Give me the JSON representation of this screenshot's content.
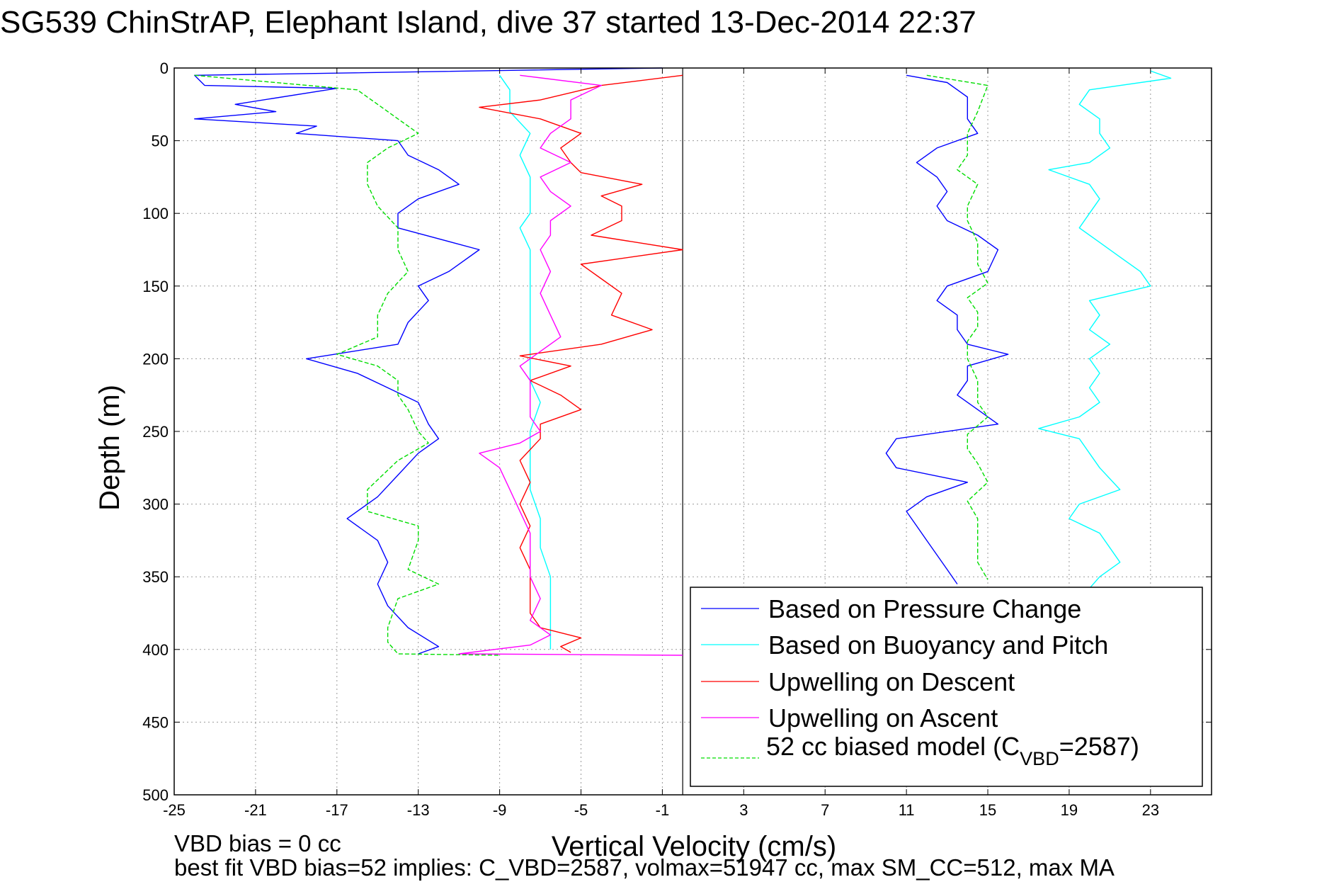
{
  "chart_data": {
    "type": "line",
    "title": "SG539 ChinStrAP, Elephant Island, dive 37 started 13-Dec-2014 22:37",
    "xlabel": "Vertical Velocity (cm/s)",
    "ylabel": "Depth (m)",
    "xlim": [
      -25,
      26
    ],
    "ylim": [
      0,
      500
    ],
    "y_reversed": true,
    "xticks": [
      "-25",
      "-21",
      "-17",
      "-13",
      "-9",
      "-5",
      "-1",
      "3",
      "7",
      "11",
      "15",
      "19",
      "23"
    ],
    "yticks": [
      "0",
      "50",
      "100",
      "150",
      "200",
      "250",
      "300",
      "350",
      "400",
      "450",
      "500"
    ],
    "grid": true,
    "zero_line_x": 0,
    "legend_position": "bottom-right",
    "legend": {
      "pressure": "Based on Pressure Change",
      "buoyancy": "Based on Buoyancy and Pitch",
      "descent": "Upwelling on Descent",
      "ascent": "Upwelling on Ascent",
      "model_prefix": "52 cc biased model (C",
      "model_sub": "VBD",
      "model_suffix": "=2587)"
    },
    "series": [
      {
        "key": "pressure-descent",
        "color": "#0000ff",
        "dashed": false,
        "points": [
          [
            -1,
            0
          ],
          [
            -24,
            5
          ],
          [
            -23.5,
            12
          ],
          [
            -17,
            14
          ],
          [
            -22,
            25
          ],
          [
            -20,
            30
          ],
          [
            -24,
            35
          ],
          [
            -18,
            40
          ],
          [
            -19,
            45
          ],
          [
            -14,
            50
          ],
          [
            -13.5,
            60
          ],
          [
            -12,
            70
          ],
          [
            -11,
            80
          ],
          [
            -13,
            90
          ],
          [
            -14,
            100
          ],
          [
            -14,
            110
          ],
          [
            -10,
            125
          ],
          [
            -11.5,
            140
          ],
          [
            -13,
            150
          ],
          [
            -12.5,
            160
          ],
          [
            -13.5,
            175
          ],
          [
            -14,
            190
          ],
          [
            -18.5,
            200
          ],
          [
            -16,
            210
          ],
          [
            -14.5,
            220
          ],
          [
            -13,
            230
          ],
          [
            -12.5,
            245
          ],
          [
            -12,
            255
          ],
          [
            -13,
            265
          ],
          [
            -14,
            280
          ],
          [
            -15,
            295
          ],
          [
            -16.5,
            310
          ],
          [
            -15,
            325
          ],
          [
            -14.5,
            340
          ],
          [
            -15,
            355
          ],
          [
            -14.5,
            370
          ],
          [
            -13.5,
            385
          ],
          [
            -12,
            398
          ],
          [
            -13,
            403
          ]
        ]
      },
      {
        "key": "pressure-ascent",
        "color": "#0000ff",
        "dashed": false,
        "points": [
          [
            11,
            5
          ],
          [
            13,
            10
          ],
          [
            14,
            20
          ],
          [
            14,
            35
          ],
          [
            14.5,
            45
          ],
          [
            12.5,
            55
          ],
          [
            11.5,
            65
          ],
          [
            12.5,
            75
          ],
          [
            13,
            85
          ],
          [
            12.5,
            95
          ],
          [
            13,
            105
          ],
          [
            14.5,
            115
          ],
          [
            15.5,
            125
          ],
          [
            15,
            140
          ],
          [
            13,
            150
          ],
          [
            12.5,
            160
          ],
          [
            13.5,
            170
          ],
          [
            13.5,
            180
          ],
          [
            14,
            190
          ],
          [
            16,
            197
          ],
          [
            14,
            205
          ],
          [
            14,
            215
          ],
          [
            13.5,
            225
          ],
          [
            14.5,
            235
          ],
          [
            15.5,
            245
          ],
          [
            10.5,
            255
          ],
          [
            10,
            265
          ],
          [
            10.5,
            275
          ],
          [
            14,
            285
          ],
          [
            12,
            295
          ],
          [
            11,
            305
          ],
          [
            11.5,
            315
          ],
          [
            12,
            325
          ],
          [
            12.5,
            335
          ],
          [
            13,
            345
          ],
          [
            13.5,
            355
          ]
        ]
      },
      {
        "key": "buoyancy-descent",
        "color": "#00ffff",
        "dashed": false,
        "points": [
          [
            -9,
            5
          ],
          [
            -8.5,
            15
          ],
          [
            -8.5,
            30
          ],
          [
            -7.5,
            45
          ],
          [
            -8,
            60
          ],
          [
            -7.5,
            75
          ],
          [
            -7.5,
            90
          ],
          [
            -7.5,
            100
          ],
          [
            -8,
            110
          ],
          [
            -7.5,
            125
          ],
          [
            -7.5,
            140
          ],
          [
            -7.5,
            155
          ],
          [
            -7.5,
            170
          ],
          [
            -7.5,
            185
          ],
          [
            -7.5,
            200
          ],
          [
            -7.5,
            215
          ],
          [
            -7,
            230
          ],
          [
            -7.5,
            250
          ],
          [
            -7.5,
            270
          ],
          [
            -7.5,
            290
          ],
          [
            -7,
            310
          ],
          [
            -7,
            330
          ],
          [
            -6.5,
            350
          ],
          [
            -6.5,
            370
          ],
          [
            -6.5,
            385
          ],
          [
            -6.5,
            400
          ]
        ]
      },
      {
        "key": "buoyancy-ascent",
        "color": "#00ffff",
        "dashed": false,
        "points": [
          [
            23,
            2
          ],
          [
            24,
            7
          ],
          [
            20,
            15
          ],
          [
            19.5,
            25
          ],
          [
            20.5,
            35
          ],
          [
            20.5,
            45
          ],
          [
            21,
            55
          ],
          [
            20,
            65
          ],
          [
            18,
            70
          ],
          [
            20,
            80
          ],
          [
            20.5,
            90
          ],
          [
            20,
            100
          ],
          [
            19.5,
            110
          ],
          [
            20.5,
            120
          ],
          [
            21.5,
            130
          ],
          [
            22.5,
            140
          ],
          [
            23,
            150
          ],
          [
            20,
            160
          ],
          [
            20.5,
            170
          ],
          [
            20,
            180
          ],
          [
            21,
            190
          ],
          [
            20,
            200
          ],
          [
            20.5,
            210
          ],
          [
            20,
            220
          ],
          [
            20.5,
            230
          ],
          [
            19.5,
            240
          ],
          [
            17.5,
            248
          ],
          [
            19.5,
            255
          ],
          [
            20,
            265
          ],
          [
            20.5,
            275
          ],
          [
            21.5,
            290
          ],
          [
            19.5,
            300
          ],
          [
            19,
            310
          ],
          [
            20.5,
            320
          ],
          [
            21,
            330
          ],
          [
            21.5,
            340
          ],
          [
            20.5,
            350
          ],
          [
            20,
            358
          ]
        ]
      },
      {
        "key": "upwelling-descent",
        "color": "#ff0000",
        "dashed": false,
        "points": [
          [
            0,
            5
          ],
          [
            -4,
            12
          ],
          [
            -7,
            22
          ],
          [
            -10,
            27
          ],
          [
            -7,
            35
          ],
          [
            -5,
            45
          ],
          [
            -6,
            55
          ],
          [
            -5.5,
            65
          ],
          [
            -5,
            72
          ],
          [
            -2,
            80
          ],
          [
            -4,
            88
          ],
          [
            -3,
            95
          ],
          [
            -3,
            105
          ],
          [
            -4.5,
            115
          ],
          [
            0,
            125
          ],
          [
            -5,
            135
          ],
          [
            -4,
            145
          ],
          [
            -3,
            155
          ],
          [
            -3.5,
            170
          ],
          [
            -1.5,
            180
          ],
          [
            -4,
            190
          ],
          [
            -8,
            198
          ],
          [
            -5.5,
            205
          ],
          [
            -7.5,
            215
          ],
          [
            -6,
            225
          ],
          [
            -5,
            235
          ],
          [
            -7,
            245
          ],
          [
            -7,
            255
          ],
          [
            -8,
            270
          ],
          [
            -7.5,
            285
          ],
          [
            -8,
            300
          ],
          [
            -7.5,
            315
          ],
          [
            -8,
            330
          ],
          [
            -7.5,
            345
          ],
          [
            -7.5,
            360
          ],
          [
            -7.5,
            375
          ],
          [
            -7,
            385
          ],
          [
            -5,
            392
          ],
          [
            -6,
            398
          ],
          [
            -5.5,
            402
          ]
        ]
      },
      {
        "key": "upwelling-ascent",
        "color": "#ff00ff",
        "dashed": false,
        "points": [
          [
            -8,
            5
          ],
          [
            -4,
            12
          ],
          [
            -5.5,
            22
          ],
          [
            -5.5,
            35
          ],
          [
            -6.5,
            45
          ],
          [
            -7,
            55
          ],
          [
            -5.5,
            65
          ],
          [
            -7,
            75
          ],
          [
            -6.5,
            85
          ],
          [
            -5.5,
            95
          ],
          [
            -6.5,
            105
          ],
          [
            -6.5,
            115
          ],
          [
            -7,
            125
          ],
          [
            -6.5,
            140
          ],
          [
            -7,
            155
          ],
          [
            -6.5,
            170
          ],
          [
            -6,
            185
          ],
          [
            -7,
            195
          ],
          [
            -8,
            205
          ],
          [
            -7.5,
            215
          ],
          [
            -7.5,
            225
          ],
          [
            -7.5,
            240
          ],
          [
            -7,
            250
          ],
          [
            -8,
            258
          ],
          [
            -10,
            265
          ],
          [
            -9,
            275
          ],
          [
            -8.5,
            290
          ],
          [
            -8,
            305
          ],
          [
            -7.5,
            320
          ],
          [
            -7.5,
            335
          ],
          [
            -7.5,
            350
          ],
          [
            -7,
            365
          ],
          [
            -7.5,
            380
          ],
          [
            -6.5,
            390
          ],
          [
            -7.5,
            397
          ],
          [
            -11,
            403
          ],
          [
            0,
            404
          ]
        ]
      },
      {
        "key": "model-descent",
        "color": "#00dd00",
        "dashed": true,
        "points": [
          [
            -24,
            5
          ],
          [
            -16,
            15
          ],
          [
            -15,
            25
          ],
          [
            -14,
            35
          ],
          [
            -13,
            45
          ],
          [
            -14.5,
            55
          ],
          [
            -15.5,
            65
          ],
          [
            -15.5,
            80
          ],
          [
            -15,
            95
          ],
          [
            -14,
            110
          ],
          [
            -14,
            125
          ],
          [
            -13.5,
            140
          ],
          [
            -14.5,
            155
          ],
          [
            -15,
            170
          ],
          [
            -15,
            185
          ],
          [
            -17,
            197
          ],
          [
            -15,
            205
          ],
          [
            -14,
            215
          ],
          [
            -14,
            225
          ],
          [
            -13.5,
            235
          ],
          [
            -13,
            250
          ],
          [
            -12.5,
            258
          ],
          [
            -14,
            270
          ],
          [
            -15.5,
            290
          ],
          [
            -15.5,
            305
          ],
          [
            -13,
            315
          ],
          [
            -13,
            325
          ],
          [
            -13.5,
            345
          ],
          [
            -12,
            355
          ],
          [
            -14,
            365
          ],
          [
            -14.5,
            385
          ],
          [
            -14.5,
            395
          ],
          [
            -14,
            403
          ],
          [
            -9,
            404
          ]
        ]
      },
      {
        "key": "model-ascent",
        "color": "#00dd00",
        "dashed": true,
        "points": [
          [
            12,
            5
          ],
          [
            15,
            12
          ],
          [
            14.5,
            30
          ],
          [
            14,
            45
          ],
          [
            14,
            60
          ],
          [
            13.5,
            70
          ],
          [
            14.5,
            80
          ],
          [
            14,
            95
          ],
          [
            14,
            105
          ],
          [
            14.5,
            120
          ],
          [
            14.5,
            135
          ],
          [
            15,
            148
          ],
          [
            14,
            158
          ],
          [
            14.5,
            168
          ],
          [
            14.5,
            178
          ],
          [
            14,
            188
          ],
          [
            14,
            200
          ],
          [
            14.5,
            215
          ],
          [
            14.5,
            230
          ],
          [
            15,
            240
          ],
          [
            14,
            252
          ],
          [
            14,
            262
          ],
          [
            14.5,
            272
          ],
          [
            15,
            285
          ],
          [
            14,
            298
          ],
          [
            14.5,
            310
          ],
          [
            14.5,
            325
          ],
          [
            14.5,
            340
          ],
          [
            15,
            352
          ]
        ]
      }
    ]
  },
  "annotations": {
    "vbd_bias_label": "VBD bias = 0 cc",
    "best_fit_label": "best fit VBD bias=52 implies: C_VBD=2587, volmax=51947 cc, max SM_CC=512, max MA"
  }
}
